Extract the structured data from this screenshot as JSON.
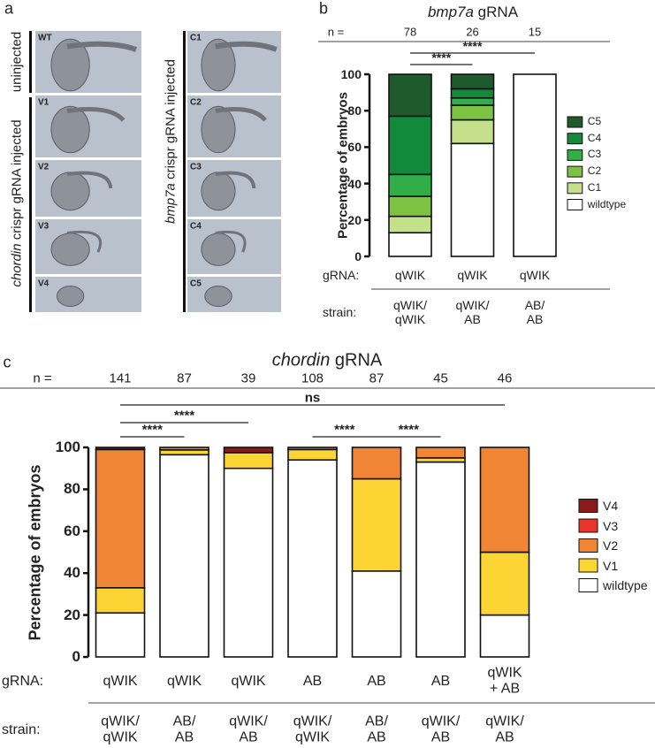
{
  "panel_labels": [
    "a",
    "b",
    "c"
  ],
  "panel_a": {
    "group_labels": [
      {
        "text": "uninjected"
      },
      {
        "gene": "chordin",
        "text": "crispr gRNA injected"
      },
      {
        "gene": "bmp7a",
        "text": "crispr gRNA injected"
      }
    ],
    "left_images": [
      "WT",
      "V1",
      "V2",
      "V3",
      "V4"
    ],
    "right_images": [
      "C1",
      "C2",
      "C3",
      "C4",
      "C5"
    ]
  },
  "chart_data": [
    {
      "type": "stacked_bar",
      "title": {
        "gene": "bmp7a",
        "text": "gRNA"
      },
      "n_label": "n =",
      "n": [
        78,
        26,
        15
      ],
      "row_labels": {
        "grna": "gRNA:",
        "strain": "strain:"
      },
      "categories": [
        "qWIK",
        "qWIK",
        "qWIK"
      ],
      "strain": [
        "qWIK/\nqWIK",
        "qWIK/\nAB",
        "AB/\nAB"
      ],
      "ylabel": "Percentage of embryos",
      "ylim": [
        0,
        100
      ],
      "yticks": [
        0,
        20,
        40,
        60,
        80,
        100
      ],
      "series": [
        {
          "name": "wildtype",
          "color": "#ffffff",
          "values": [
            13,
            62,
            100
          ]
        },
        {
          "name": "C1",
          "color": "#c4e08a",
          "values": [
            9,
            13,
            0
          ]
        },
        {
          "name": "C2",
          "color": "#7dc242",
          "values": [
            11,
            8,
            0
          ]
        },
        {
          "name": "C3",
          "color": "#2fae4a",
          "values": [
            12,
            4,
            0
          ]
        },
        {
          "name": "C4",
          "color": "#138a3b",
          "values": [
            32,
            5,
            0
          ]
        },
        {
          "name": "C5",
          "color": "#1f5a2c",
          "values": [
            23,
            8,
            0
          ]
        }
      ],
      "significance": [
        {
          "label": "****",
          "between": [
            0,
            2
          ]
        },
        {
          "label": "****",
          "between": [
            0,
            1
          ]
        }
      ]
    },
    {
      "type": "stacked_bar",
      "title": {
        "gene": "chordin",
        "text": "gRNA"
      },
      "n_label": "n =",
      "n": [
        141,
        87,
        39,
        108,
        87,
        45,
        46
      ],
      "row_labels": {
        "grna": "gRNA:",
        "strain": "strain:"
      },
      "categories": [
        "qWIK",
        "qWIK",
        "qWIK",
        "AB",
        "AB",
        "AB",
        "qWIK\n+ AB"
      ],
      "strain": [
        "qWIK/\nqWIK",
        "AB/\nAB",
        "qWIK/\nAB",
        "qWIK/\nqWIK",
        "AB/\nAB",
        "qWIK/\nAB",
        "qWIK/\nAB"
      ],
      "ylabel": "Percentage of embryos",
      "ylim": [
        0,
        100
      ],
      "yticks": [
        0,
        20,
        40,
        60,
        80,
        100
      ],
      "series": [
        {
          "name": "wildtype",
          "color": "#ffffff",
          "values": [
            21,
            96.5,
            90,
            94,
            41,
            93,
            20
          ]
        },
        {
          "name": "V1",
          "color": "#fcd535",
          "values": [
            12,
            2.3,
            7.5,
            5,
            44,
            2,
            30
          ]
        },
        {
          "name": "V2",
          "color": "#f08536",
          "values": [
            66,
            1.2,
            0,
            1,
            15,
            5,
            50
          ]
        },
        {
          "name": "V3",
          "color": "#e8352a",
          "values": [
            0,
            0,
            0,
            0,
            0,
            0,
            0
          ]
        },
        {
          "name": "V4",
          "color": "#8b1a1a",
          "values": [
            1,
            0,
            2.5,
            0,
            0,
            0,
            0
          ]
        }
      ],
      "significance": [
        {
          "label": "ns",
          "between": [
            0,
            6
          ]
        },
        {
          "label": "****",
          "between": [
            0,
            2
          ]
        },
        {
          "label": "****",
          "between": [
            0,
            1
          ]
        },
        {
          "label": "****",
          "between": [
            3,
            4
          ]
        },
        {
          "label": "****",
          "between": [
            4,
            5
          ]
        }
      ]
    }
  ]
}
